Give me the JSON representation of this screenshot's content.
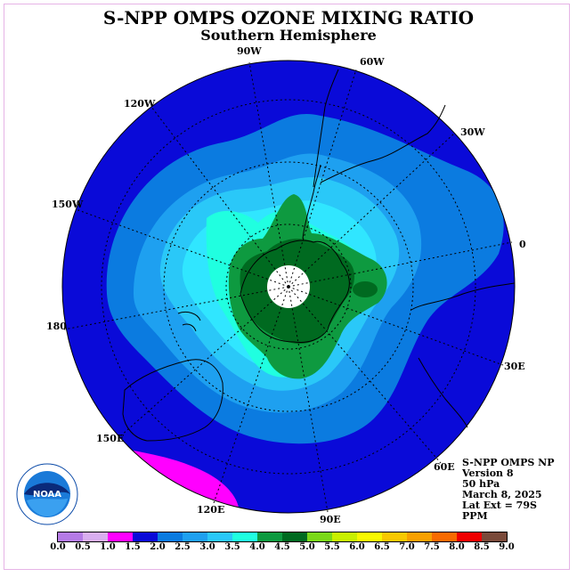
{
  "title": "S-NPP OMPS OZONE MIXING RATIO",
  "subtitle": "Southern Hemisphere",
  "longitude_labels": [
    "90W",
    "60W",
    "120W",
    "30W",
    "150W",
    "0",
    "180",
    "30E",
    "150E",
    "60E",
    "120E",
    "90E"
  ],
  "info": {
    "line1": "S-NPP OMPS NP",
    "line2": "Version 8",
    "line3": "50 hPa",
    "line4": "March 8, 2025",
    "line5": "Lat Ext = 79S",
    "line6": "PPM"
  },
  "logo_text": "NOAA",
  "colorbar": {
    "colors": [
      "#b57be6",
      "#d9aef0",
      "#ff00ff",
      "#0a0ad8",
      "#0b7be0",
      "#1ea0f0",
      "#2ac8f8",
      "#20ffe0",
      "#0e9a40",
      "#006a20",
      "#7ad818",
      "#c8f000",
      "#f8f800",
      "#f8c800",
      "#f8a000",
      "#f86a00",
      "#f00000",
      "#7a4a3a"
    ],
    "tick_labels": [
      "0.0",
      "0.5",
      "1.0",
      "1.5",
      "2.0",
      "2.5",
      "3.0",
      "3.5",
      "4.0",
      "4.5",
      "5.0",
      "5.5",
      "6.0",
      "6.5",
      "7.0",
      "7.5",
      "8.0",
      "8.5",
      "9.0"
    ]
  },
  "map_colors": {
    "deep_blue": "#0a0ad8",
    "blue2": "#0b7be0",
    "blue3": "#1ea0f0",
    "cyan": "#2ac8f8",
    "aqua": "#20ffe0",
    "green": "#0e9a40",
    "dark_green": "#006a20",
    "magenta": "#ff00ff"
  }
}
